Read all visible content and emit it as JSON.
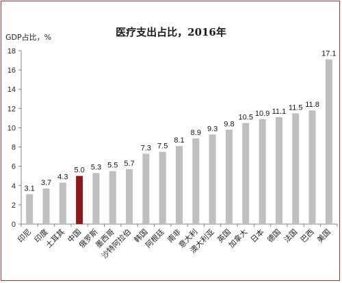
{
  "chart_data": {
    "type": "bar",
    "title": "医疗支出占比，2016年",
    "ylabel": "GDP占比，%",
    "xlabel": "",
    "ylim": [
      0,
      18
    ],
    "yticks": [
      0,
      2,
      4,
      6,
      8,
      10,
      12,
      14,
      16,
      18
    ],
    "grid": false,
    "categories": [
      "印尼",
      "印度",
      "土耳其",
      "中国",
      "俄罗斯",
      "墨西哥",
      "沙特阿拉伯",
      "韩国",
      "阿根廷",
      "南非",
      "意大利",
      "澳大利亚",
      "英国",
      "加拿大",
      "日本",
      "德国",
      "法国",
      "巴西",
      "美国"
    ],
    "values": [
      3.1,
      3.7,
      4.3,
      5.0,
      5.3,
      5.5,
      5.7,
      7.3,
      7.5,
      8.1,
      8.9,
      9.3,
      9.8,
      10.5,
      10.9,
      11.1,
      11.5,
      11.8,
      17.1
    ],
    "value_labels": [
      "3.1",
      "3.7",
      "4.3",
      "5.0",
      "5.3",
      "5.5",
      "5.7",
      "7.3",
      "7.5",
      "8.1",
      "8.9",
      "9.3",
      "9.8",
      "10.5",
      "10.9",
      "11.1",
      "11.5",
      "11.8",
      "17.1"
    ],
    "colors": {
      "default": "#bfbfbf",
      "highlight": "#8b1a1a",
      "frame": "#b32b2b"
    },
    "highlight_category": "中国"
  }
}
